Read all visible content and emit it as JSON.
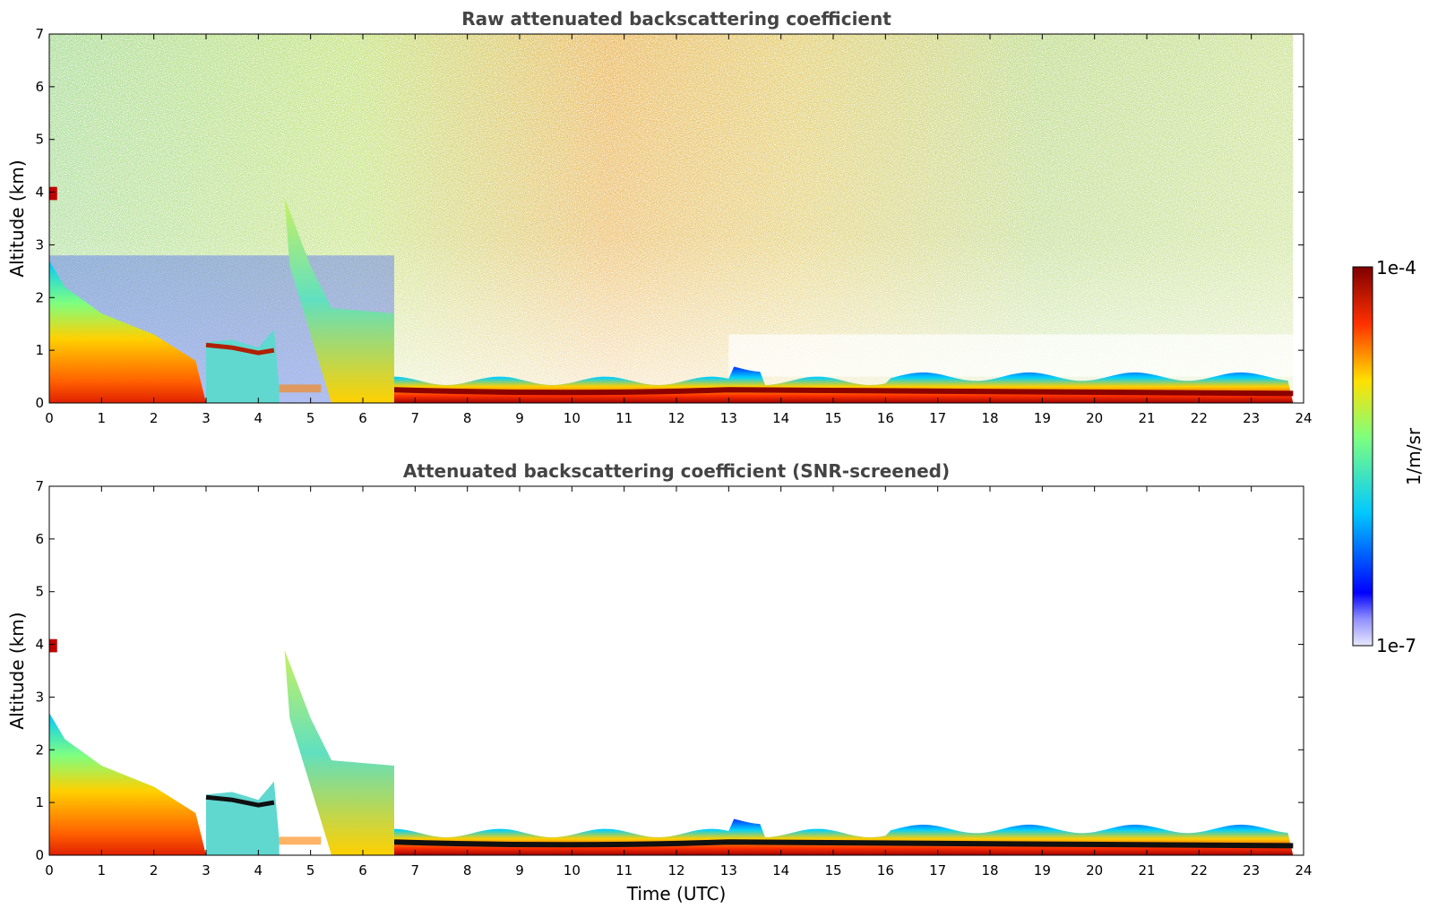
{
  "chart_data": [
    {
      "type": "heatmap",
      "title": "Raw attenuated backscattering coefficient",
      "xlabel": "",
      "ylabel": "Altitude (km)",
      "xlim": [
        0,
        24
      ],
      "ylim": [
        0,
        7
      ],
      "xticks": [
        "0",
        "1",
        "2",
        "3",
        "4",
        "5",
        "6",
        "7",
        "8",
        "9",
        "10",
        "11",
        "12",
        "13",
        "14",
        "15",
        "16",
        "17",
        "18",
        "19",
        "20",
        "21",
        "22",
        "23",
        "24"
      ],
      "yticks": [
        "0",
        "1",
        "2",
        "3",
        "4",
        "5",
        "6",
        "7"
      ],
      "noise": "high",
      "features": [
        {
          "name": "boundary layer morning",
          "x": [
            0,
            0.3,
            1,
            2,
            2.8,
            3.0
          ],
          "top": [
            2.7,
            2.2,
            1.7,
            1.3,
            0.8,
            0.0
          ]
        },
        {
          "name": "cloud layer",
          "x": [
            3.0,
            3.5,
            4.0,
            4.4
          ],
          "height": [
            1.1,
            1.1,
            0.95,
            1.0
          ]
        },
        {
          "name": "aerosol plume",
          "x": [
            4.5,
            5.0,
            5.5,
            6.6
          ],
          "top": [
            3.8,
            2.7,
            1.5,
            1.0
          ]
        },
        {
          "name": "surface layer",
          "x": [
            6.6,
            13,
            24
          ],
          "top": [
            0.5,
            0.6,
            0.5
          ]
        }
      ]
    },
    {
      "type": "heatmap",
      "title": "Attenuated backscattering coefficient (SNR-screened)",
      "xlabel": "Time (UTC)",
      "ylabel": "Altitude (km)",
      "xlim": [
        0,
        24
      ],
      "ylim": [
        0,
        7
      ],
      "xticks": [
        "0",
        "1",
        "2",
        "3",
        "4",
        "5",
        "6",
        "7",
        "8",
        "9",
        "10",
        "11",
        "12",
        "13",
        "14",
        "15",
        "16",
        "17",
        "18",
        "19",
        "20",
        "21",
        "22",
        "23",
        "24"
      ],
      "yticks": [
        "0",
        "1",
        "2",
        "3",
        "4",
        "5",
        "6",
        "7"
      ],
      "noise": "screened",
      "features": [
        {
          "name": "boundary layer morning",
          "x": [
            0,
            0.3,
            1,
            2,
            2.8,
            3.0
          ],
          "top": [
            2.7,
            2.2,
            1.7,
            1.3,
            0.8,
            0.0
          ]
        },
        {
          "name": "cloud layer",
          "x": [
            3.0,
            3.5,
            4.0,
            4.4
          ],
          "height": [
            1.1,
            1.1,
            0.95,
            1.0
          ]
        },
        {
          "name": "aerosol plume",
          "x": [
            4.5,
            5.0,
            5.5,
            6.6
          ],
          "top": [
            3.8,
            2.7,
            1.5,
            1.0
          ]
        },
        {
          "name": "surface layer",
          "x": [
            6.6,
            13,
            24
          ],
          "top": [
            0.5,
            0.6,
            0.5
          ]
        }
      ]
    }
  ],
  "colorbar": {
    "max_label": "1e-4",
    "min_label": "1e-7",
    "label": "1/m/sr",
    "scale": "log",
    "range": [
      1e-07,
      0.0001
    ],
    "colors": [
      "#e8e8ff",
      "#0000ff",
      "#00c8ff",
      "#7fff7f",
      "#ffe000",
      "#ff3000",
      "#7f0000"
    ]
  }
}
